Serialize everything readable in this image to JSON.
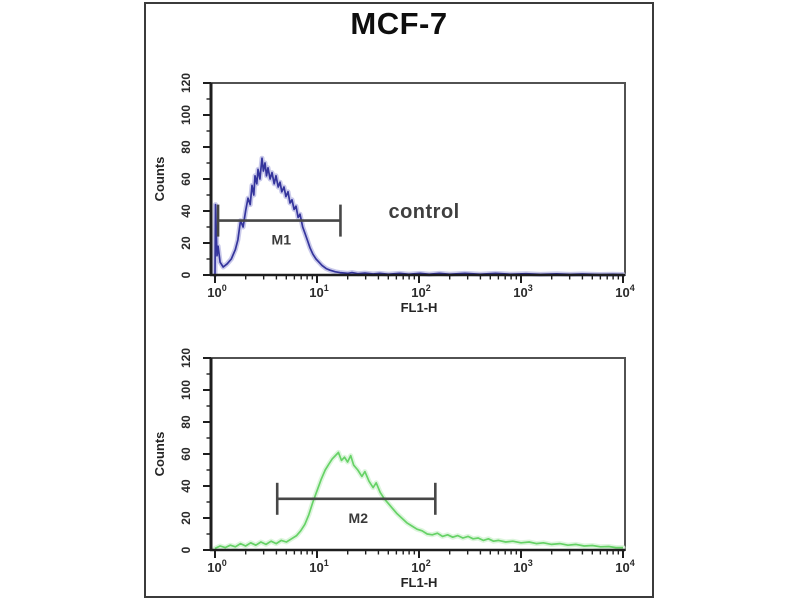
{
  "figure": {
    "title": "MCF-7"
  },
  "colors": {
    "background": "#ffffff",
    "outer_border": "#3b3b3b",
    "plot_frame": "#525252",
    "axis": "#1e1e1e",
    "tick_text": "#2b2b2b",
    "gate": "#474747",
    "control_curve": "#34349c",
    "control_glow": "#c3c3e8",
    "stained_curve": "#66d266",
    "stained_glow": "#d9f4d9"
  },
  "chart_data": [
    {
      "type": "line",
      "name": "control-histogram",
      "xlabel": "FL1-H",
      "ylabel": "Counts",
      "x_scale": "log",
      "xlim": [
        1,
        10000
      ],
      "ylim": [
        0,
        120
      ],
      "x_tick_base": "10",
      "x_tick_exponents": [
        0,
        1,
        2,
        3,
        4
      ],
      "y_ticks": [
        0,
        20,
        40,
        60,
        80,
        100,
        120
      ],
      "grid": false,
      "legend": "none",
      "gate": {
        "label": "M1",
        "from_log": 0.03,
        "to_log": 1.23,
        "counts": 34
      },
      "annotation": {
        "text": "control",
        "log_x": 2.05,
        "counts": 40
      },
      "series": [
        {
          "name": "control",
          "color": "control_curve",
          "glow": "control_glow",
          "points": [
            [
              0.0,
              0
            ],
            [
              0.005,
              44
            ],
            [
              0.02,
              12
            ],
            [
              0.03,
              18
            ],
            [
              0.05,
              8
            ],
            [
              0.08,
              5
            ],
            [
              0.12,
              7
            ],
            [
              0.16,
              10
            ],
            [
              0.2,
              16
            ],
            [
              0.225,
              22
            ],
            [
              0.25,
              34
            ],
            [
              0.275,
              30
            ],
            [
              0.3,
              40
            ],
            [
              0.324,
              48
            ],
            [
              0.345,
              44
            ],
            [
              0.363,
              56
            ],
            [
              0.38,
              50
            ],
            [
              0.392,
              62
            ],
            [
              0.41,
              57
            ],
            [
              0.422,
              66
            ],
            [
              0.44,
              60
            ],
            [
              0.461,
              73
            ],
            [
              0.475,
              65
            ],
            [
              0.49,
              70
            ],
            [
              0.505,
              62
            ],
            [
              0.52,
              67
            ],
            [
              0.54,
              60
            ],
            [
              0.559,
              64
            ],
            [
              0.58,
              57
            ],
            [
              0.598,
              62
            ],
            [
              0.62,
              55
            ],
            [
              0.637,
              58
            ],
            [
              0.655,
              52
            ],
            [
              0.676,
              55
            ],
            [
              0.695,
              49
            ],
            [
              0.716,
              52
            ],
            [
              0.735,
              45
            ],
            [
              0.755,
              47
            ],
            [
              0.775,
              41
            ],
            [
              0.794,
              43
            ],
            [
              0.815,
              36
            ],
            [
              0.833,
              38
            ],
            [
              0.86,
              30
            ],
            [
              0.882,
              26
            ],
            [
              0.91,
              21
            ],
            [
              0.931,
              17
            ],
            [
              0.96,
              13
            ],
            [
              0.99,
              10
            ],
            [
              1.02,
              8
            ],
            [
              1.049,
              6
            ],
            [
              1.09,
              4
            ],
            [
              1.127,
              3
            ],
            [
              1.18,
              2
            ],
            [
              1.225,
              1.5
            ],
            [
              1.3,
              1
            ],
            [
              1.343,
              1.5
            ],
            [
              1.4,
              0.8
            ],
            [
              1.47,
              1.2
            ],
            [
              1.55,
              0.6
            ],
            [
              1.617,
              1
            ],
            [
              1.7,
              0.5
            ],
            [
              1.81,
              1
            ],
            [
              1.9,
              0.5
            ],
            [
              2.01,
              1
            ],
            [
              2.1,
              0.5
            ],
            [
              2.2,
              1
            ],
            [
              2.3,
              0.5
            ],
            [
              2.45,
              1
            ],
            [
              2.6,
              0.5
            ],
            [
              2.75,
              1
            ],
            [
              2.89,
              0.5
            ],
            [
              3.05,
              0.8
            ],
            [
              3.19,
              0.4
            ],
            [
              3.35,
              0.7
            ],
            [
              3.48,
              0.4
            ],
            [
              3.6,
              0.6
            ],
            [
              3.77,
              0.3
            ],
            [
              3.9,
              0.5
            ],
            [
              4.0,
              0.3
            ]
          ]
        }
      ]
    },
    {
      "type": "line",
      "name": "stained-histogram",
      "xlabel": "FL1-H",
      "ylabel": "Counts",
      "x_scale": "log",
      "xlim": [
        1,
        10000
      ],
      "ylim": [
        0,
        120
      ],
      "x_tick_base": "10",
      "x_tick_exponents": [
        0,
        1,
        2,
        3,
        4
      ],
      "y_ticks": [
        0,
        20,
        40,
        60,
        80,
        100,
        120
      ],
      "grid": false,
      "legend": "none",
      "gate": {
        "label": "M2",
        "from_log": 0.61,
        "to_log": 2.16,
        "counts": 32
      },
      "annotation": null,
      "series": [
        {
          "name": "stained",
          "color": "stained_curve",
          "glow": "stained_glow",
          "points": [
            [
              0.0,
              1
            ],
            [
              0.05,
              2.5
            ],
            [
              0.1,
              1.5
            ],
            [
              0.15,
              3
            ],
            [
              0.2,
              2
            ],
            [
              0.25,
              4
            ],
            [
              0.3,
              2.5
            ],
            [
              0.35,
              4.5
            ],
            [
              0.4,
              3
            ],
            [
              0.45,
              5
            ],
            [
              0.5,
              3.5
            ],
            [
              0.55,
              5.5
            ],
            [
              0.6,
              4
            ],
            [
              0.65,
              6
            ],
            [
              0.7,
              5
            ],
            [
              0.75,
              7
            ],
            [
              0.8,
              9
            ],
            [
              0.84,
              12
            ],
            [
              0.88,
              16
            ],
            [
              0.92,
              22
            ],
            [
              0.96,
              30
            ],
            [
              1.0,
              37
            ],
            [
              1.04,
              44
            ],
            [
              1.08,
              50
            ],
            [
              1.12,
              54
            ],
            [
              1.15,
              57
            ],
            [
              1.18,
              59
            ],
            [
              1.21,
              61
            ],
            [
              1.24,
              56
            ],
            [
              1.27,
              58
            ],
            [
              1.3,
              55
            ],
            [
              1.33,
              59
            ],
            [
              1.36,
              53
            ],
            [
              1.4,
              50
            ],
            [
              1.44,
              46
            ],
            [
              1.47,
              49
            ],
            [
              1.51,
              43
            ],
            [
              1.55,
              39
            ],
            [
              1.58,
              42
            ],
            [
              1.62,
              36
            ],
            [
              1.66,
              32
            ],
            [
              1.7,
              29
            ],
            [
              1.74,
              26
            ],
            [
              1.78,
              23
            ],
            [
              1.83,
              20
            ],
            [
              1.88,
              17
            ],
            [
              1.93,
              15
            ],
            [
              1.98,
              13
            ],
            [
              2.03,
              12
            ],
            [
              2.08,
              10
            ],
            [
              2.13,
              9.5
            ],
            [
              2.18,
              10.5
            ],
            [
              2.23,
              8.5
            ],
            [
              2.28,
              9.5
            ],
            [
              2.33,
              8
            ],
            [
              2.38,
              9
            ],
            [
              2.43,
              7.5
            ],
            [
              2.48,
              8.5
            ],
            [
              2.53,
              7
            ],
            [
              2.58,
              7.5
            ],
            [
              2.63,
              6
            ],
            [
              2.68,
              7
            ],
            [
              2.73,
              5.5
            ],
            [
              2.78,
              6
            ],
            [
              2.85,
              5
            ],
            [
              2.92,
              5.5
            ],
            [
              3.0,
              4.5
            ],
            [
              3.08,
              5
            ],
            [
              3.15,
              4
            ],
            [
              3.22,
              4.5
            ],
            [
              3.3,
              3.5
            ],
            [
              3.38,
              4
            ],
            [
              3.46,
              3
            ],
            [
              3.54,
              3.5
            ],
            [
              3.62,
              2.5
            ],
            [
              3.7,
              2.8
            ],
            [
              3.78,
              2
            ],
            [
              3.86,
              2.2
            ],
            [
              3.93,
              1.5
            ],
            [
              4.0,
              1.5
            ]
          ]
        }
      ]
    }
  ]
}
